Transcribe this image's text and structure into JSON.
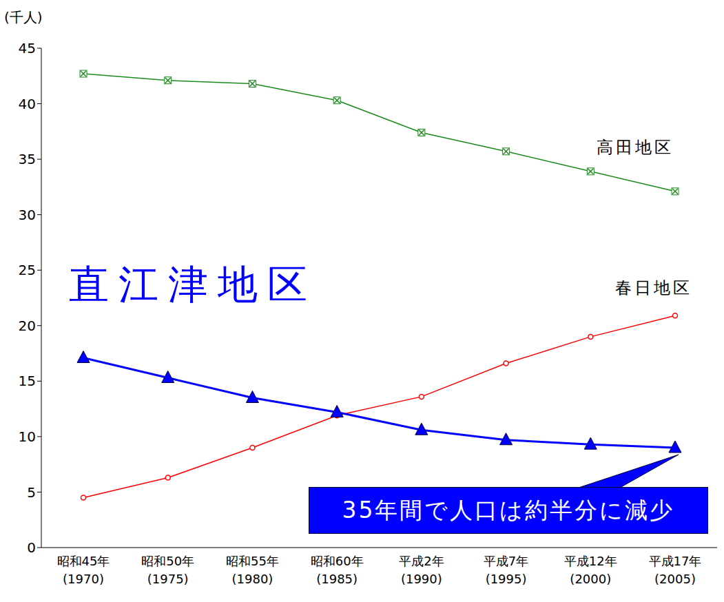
{
  "chart_data": {
    "type": "line",
    "y_label": "(千人)",
    "categories": [
      "昭和45年\n(1970)",
      "昭和50年\n(1975)",
      "昭和55年\n(1980)",
      "昭和60年\n(1985)",
      "平成2年\n(1990)",
      "平成7年\n(1995)",
      "平成12年\n(2000)",
      "平成17年\n(2005)"
    ],
    "ylim": [
      0,
      45
    ],
    "yticks": [
      0,
      5,
      10,
      15,
      20,
      25,
      30,
      35,
      40,
      45
    ],
    "grid": false,
    "series": [
      {
        "name": "高田地区",
        "color": "#1a8a1a",
        "marker": "x",
        "values": [
          42.7,
          42.1,
          41.8,
          40.3,
          37.4,
          35.7,
          33.9,
          32.1
        ]
      },
      {
        "name": "春日地区",
        "color": "#ff0000",
        "marker": "circle",
        "values": [
          4.5,
          6.3,
          9.0,
          11.9,
          13.6,
          16.6,
          19.0,
          20.9
        ]
      },
      {
        "name": "直江津地区",
        "color": "#0000ff",
        "marker": "triangle",
        "values": [
          17.1,
          15.3,
          13.5,
          12.2,
          10.6,
          9.7,
          9.3,
          9.0
        ]
      }
    ],
    "annotations": [
      "35年間で人口は約半分に減少"
    ]
  }
}
